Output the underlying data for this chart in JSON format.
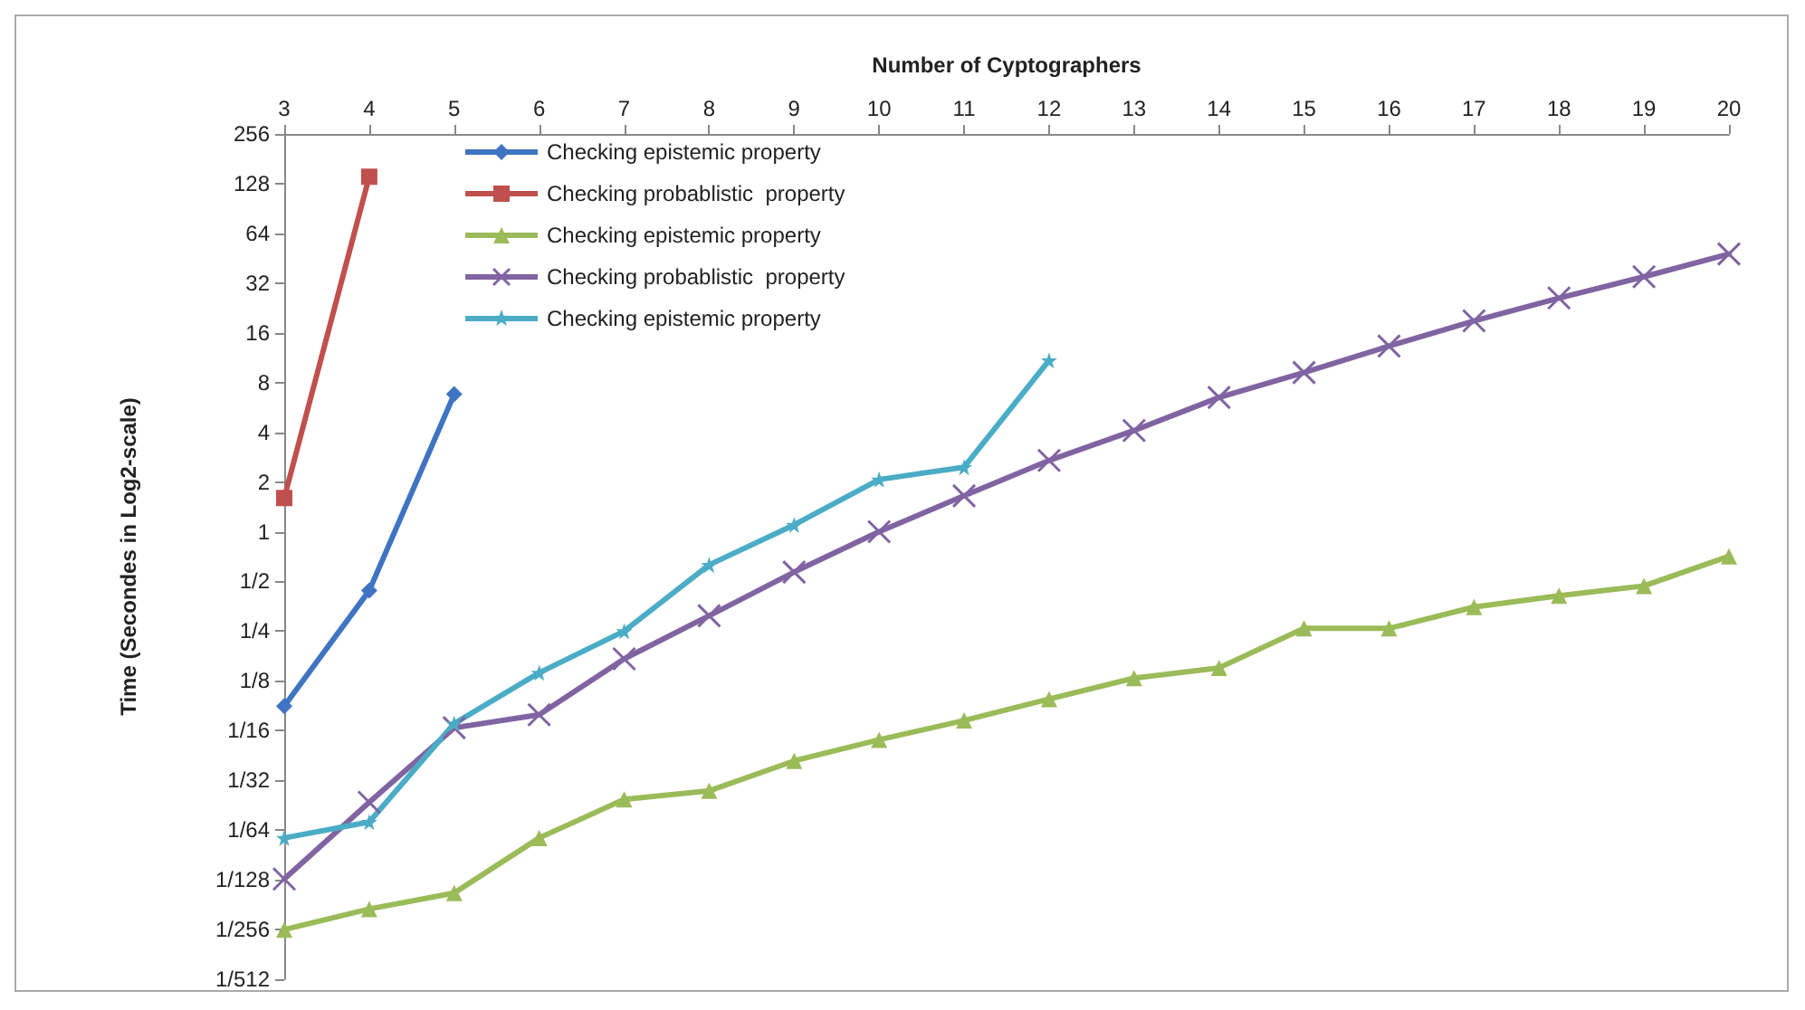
{
  "chart_data": {
    "type": "line",
    "xlabel": "Number of Cyptographers",
    "ylabel": "Time (Secondes in Log2-scale)",
    "log": "y",
    "grid": false,
    "legend": "top left",
    "line_style": "solid",
    "x": [
      3,
      4,
      5,
      6,
      7,
      8,
      9,
      10,
      11,
      12,
      13,
      14,
      15,
      16,
      17,
      18,
      19,
      20
    ],
    "xlim": [
      3,
      20
    ],
    "xticks": [
      3,
      4,
      5,
      6,
      7,
      8,
      9,
      10,
      11,
      12,
      13,
      14,
      15,
      16,
      17,
      18,
      19,
      20
    ],
    "ylim": [
      0.001953125,
      256
    ],
    "yticks": [
      {
        "value": 0.001953125,
        "label": "1/512"
      },
      {
        "value": 0.00390625,
        "label": "1/256"
      },
      {
        "value": 0.0078125,
        "label": "1/128"
      },
      {
        "value": 0.015625,
        "label": "1/64"
      },
      {
        "value": 0.03125,
        "label": "1/32"
      },
      {
        "value": 0.0625,
        "label": "1/16"
      },
      {
        "value": 0.125,
        "label": "1/8"
      },
      {
        "value": 0.25,
        "label": "1/4"
      },
      {
        "value": 0.5,
        "label": "1/2"
      },
      1,
      2,
      4,
      8,
      16,
      32,
      64,
      128,
      256
    ],
    "series": [
      {
        "name": "Checking epistemic property",
        "color": "#3f74c2",
        "marker": "diamond",
        "x": [
          3,
          4,
          5
        ],
        "values": [
          0.088,
          0.44,
          6.8
        ]
      },
      {
        "name": "Checking probablistic  property",
        "color": "#c0504d",
        "marker": "square",
        "x": [
          3,
          4
        ],
        "values": [
          1.6,
          141
        ]
      },
      {
        "name": "Checking epistemic property",
        "color": "#9bbb59",
        "marker": "triangle",
        "values": [
          0.0039,
          0.0052,
          0.0065,
          0.014,
          0.024,
          0.027,
          0.041,
          0.055,
          0.072,
          0.097,
          0.13,
          0.15,
          0.26,
          0.26,
          0.35,
          0.41,
          0.47,
          0.71
        ]
      },
      {
        "name": "Checking probablistic  property",
        "color": "#8064a2",
        "marker": "cross",
        "values": [
          0.0079,
          0.023,
          0.065,
          0.078,
          0.17,
          0.31,
          0.57,
          1.0,
          1.65,
          2.7,
          4.1,
          6.5,
          9.2,
          13.3,
          18.9,
          26,
          35,
          48
        ]
      },
      {
        "name": "Checking epistemic property",
        "color": "#4bacc6",
        "marker": "star",
        "x": [
          3,
          4,
          5,
          6,
          7,
          8,
          9,
          10,
          11,
          12
        ],
        "values": [
          0.014,
          0.0175,
          0.069,
          0.14,
          0.25,
          0.63,
          1.1,
          2.07,
          2.46,
          10.9
        ]
      }
    ]
  }
}
